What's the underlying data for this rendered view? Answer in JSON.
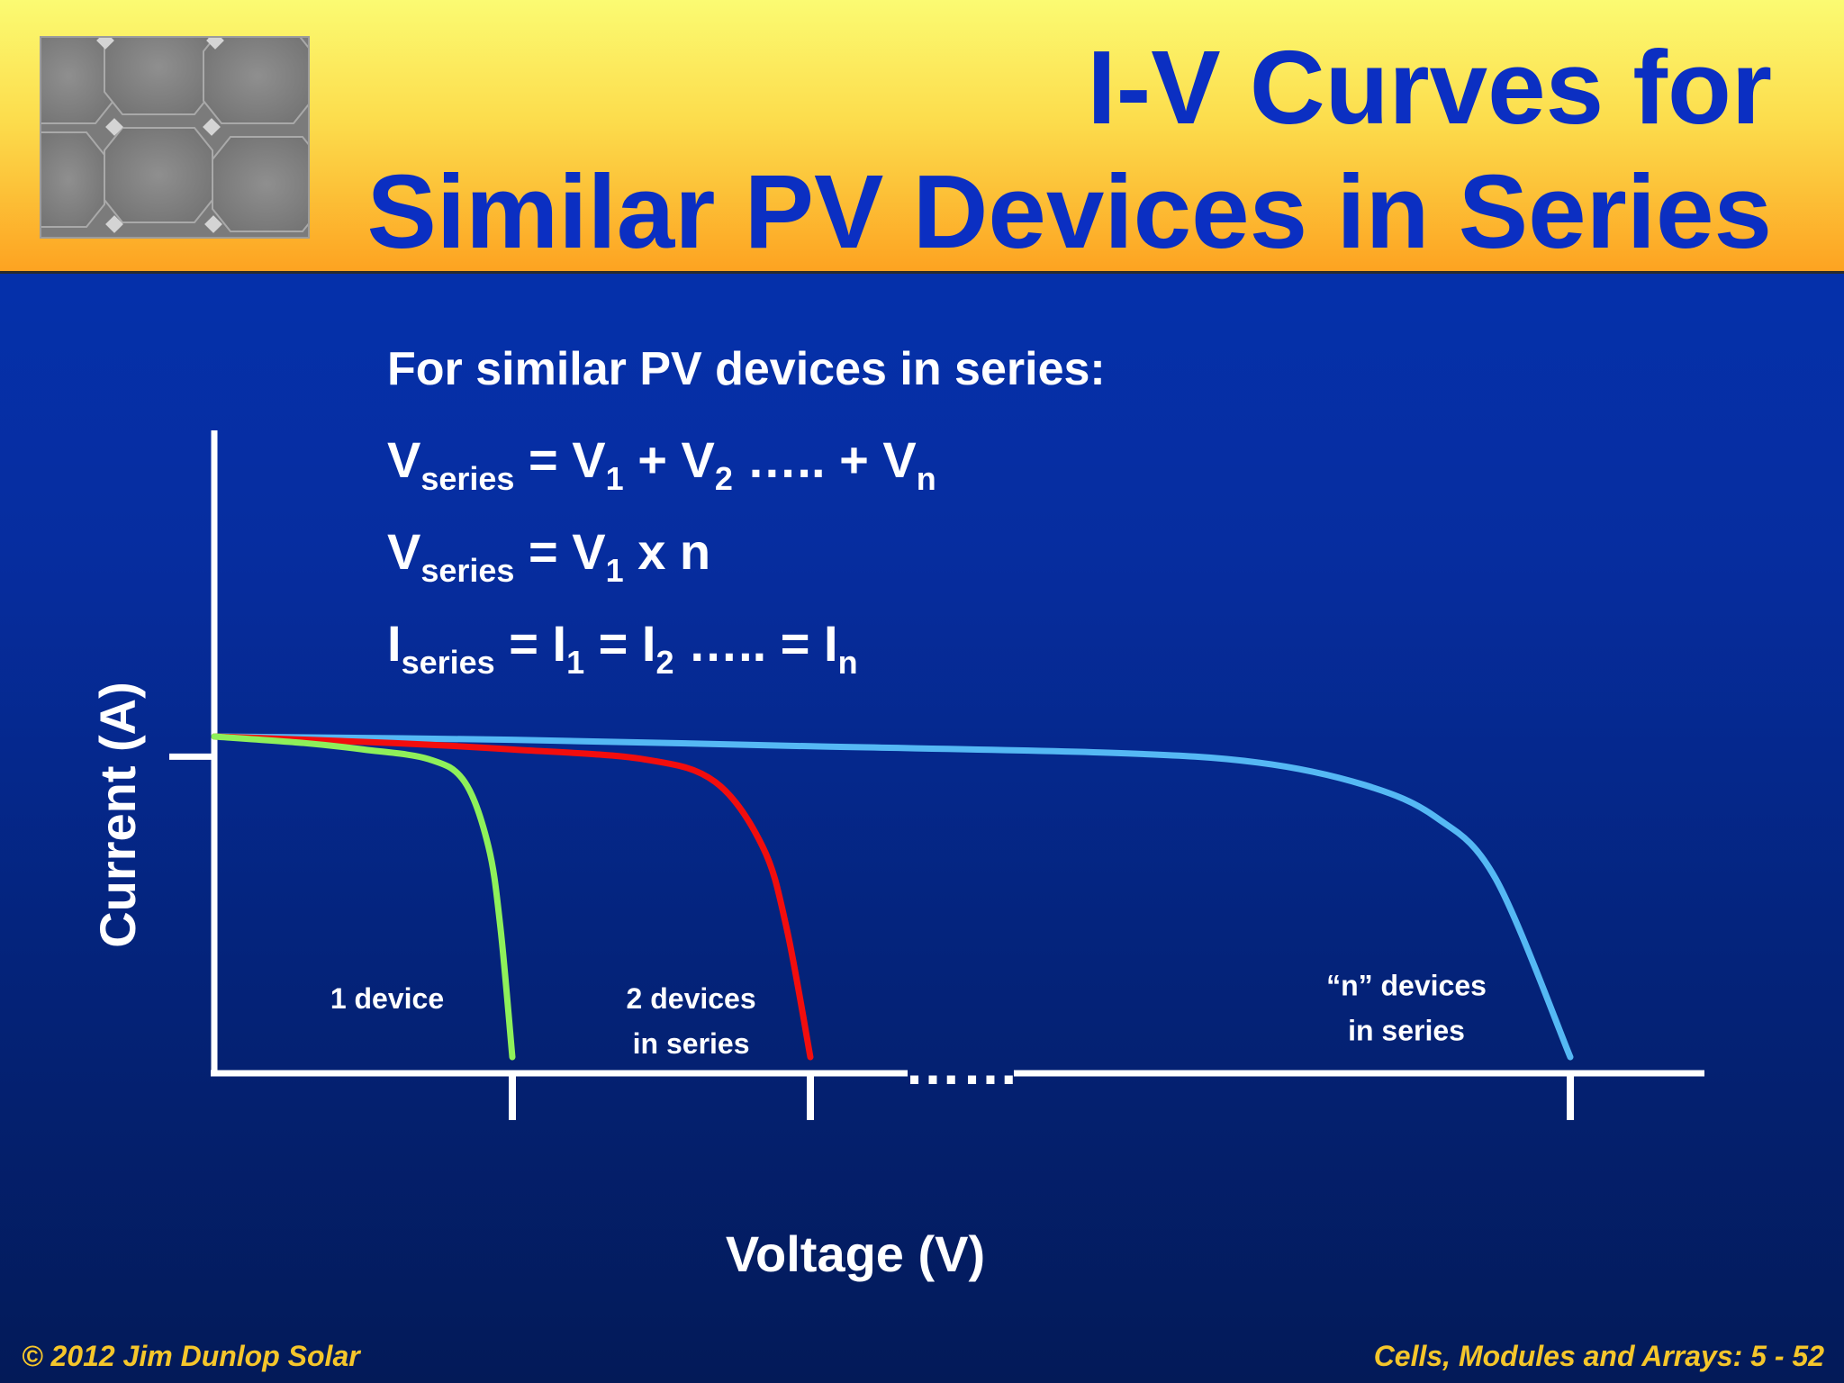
{
  "slide": {
    "title_line1": "I-V Curves for",
    "title_line2": "Similar PV Devices in Series",
    "intro": "For similar PV devices in series:",
    "equations": [
      {
        "parts": [
          [
            "V",
            "series"
          ],
          [
            " = V",
            "1"
          ],
          [
            " + V",
            "2"
          ],
          [
            " ….. + V",
            "n"
          ]
        ]
      },
      {
        "parts": [
          [
            "V",
            "series"
          ],
          [
            " = V",
            "1"
          ],
          [
            " x n",
            ""
          ]
        ]
      },
      {
        "parts": [
          [
            "I",
            "series"
          ],
          [
            " = I",
            "1"
          ],
          [
            " = I",
            "2"
          ],
          [
            " ….. = I",
            "n"
          ]
        ]
      }
    ],
    "footer_left": "© 2012 Jim Dunlop Solar",
    "footer_right": "Cells, Modules and Arrays: 5 - 52",
    "thumbnail_icon": "solar-panel-photo"
  },
  "chart_data": {
    "type": "line",
    "xlabel": "Voltage (V)",
    "ylabel": "Current (A)",
    "xlim": [
      0,
      5
    ],
    "ylim": [
      0,
      1.1
    ],
    "axis_gap_marker": "……",
    "x_tick_values": [
      1,
      2,
      4.55
    ],
    "y_tick_values": [
      1.0
    ],
    "grid": false,
    "legend": "none (curves labeled directly)",
    "series": [
      {
        "name": "1 device",
        "color": "#8ef05a",
        "label_position": [
          0.58,
          0.2
        ],
        "points": [
          [
            0,
            1.04
          ],
          [
            0.3,
            1.02
          ],
          [
            0.5,
            1.0
          ],
          [
            0.72,
            0.97
          ],
          [
            0.84,
            0.9
          ],
          [
            0.92,
            0.7
          ],
          [
            0.96,
            0.45
          ],
          [
            1.0,
            0.05
          ]
        ]
      },
      {
        "name": "2 devices in series",
        "color": "#f20d0d",
        "label_position": [
          1.6,
          0.2
        ],
        "points": [
          [
            0,
            1.04
          ],
          [
            0.6,
            1.02
          ],
          [
            1.0,
            1.0
          ],
          [
            1.44,
            0.97
          ],
          [
            1.68,
            0.9
          ],
          [
            1.84,
            0.7
          ],
          [
            1.92,
            0.45
          ],
          [
            2.0,
            0.05
          ]
        ]
      },
      {
        "name": "“n” devices in series",
        "color": "#55b8f4",
        "label_position": [
          4.0,
          0.24
        ],
        "points": [
          [
            0,
            1.04
          ],
          [
            1.0,
            1.03
          ],
          [
            2.0,
            1.01
          ],
          [
            3.0,
            0.99
          ],
          [
            3.5,
            0.96
          ],
          [
            3.86,
            0.89
          ],
          [
            4.1,
            0.79
          ],
          [
            4.3,
            0.6
          ],
          [
            4.55,
            0.05
          ]
        ]
      }
    ]
  }
}
